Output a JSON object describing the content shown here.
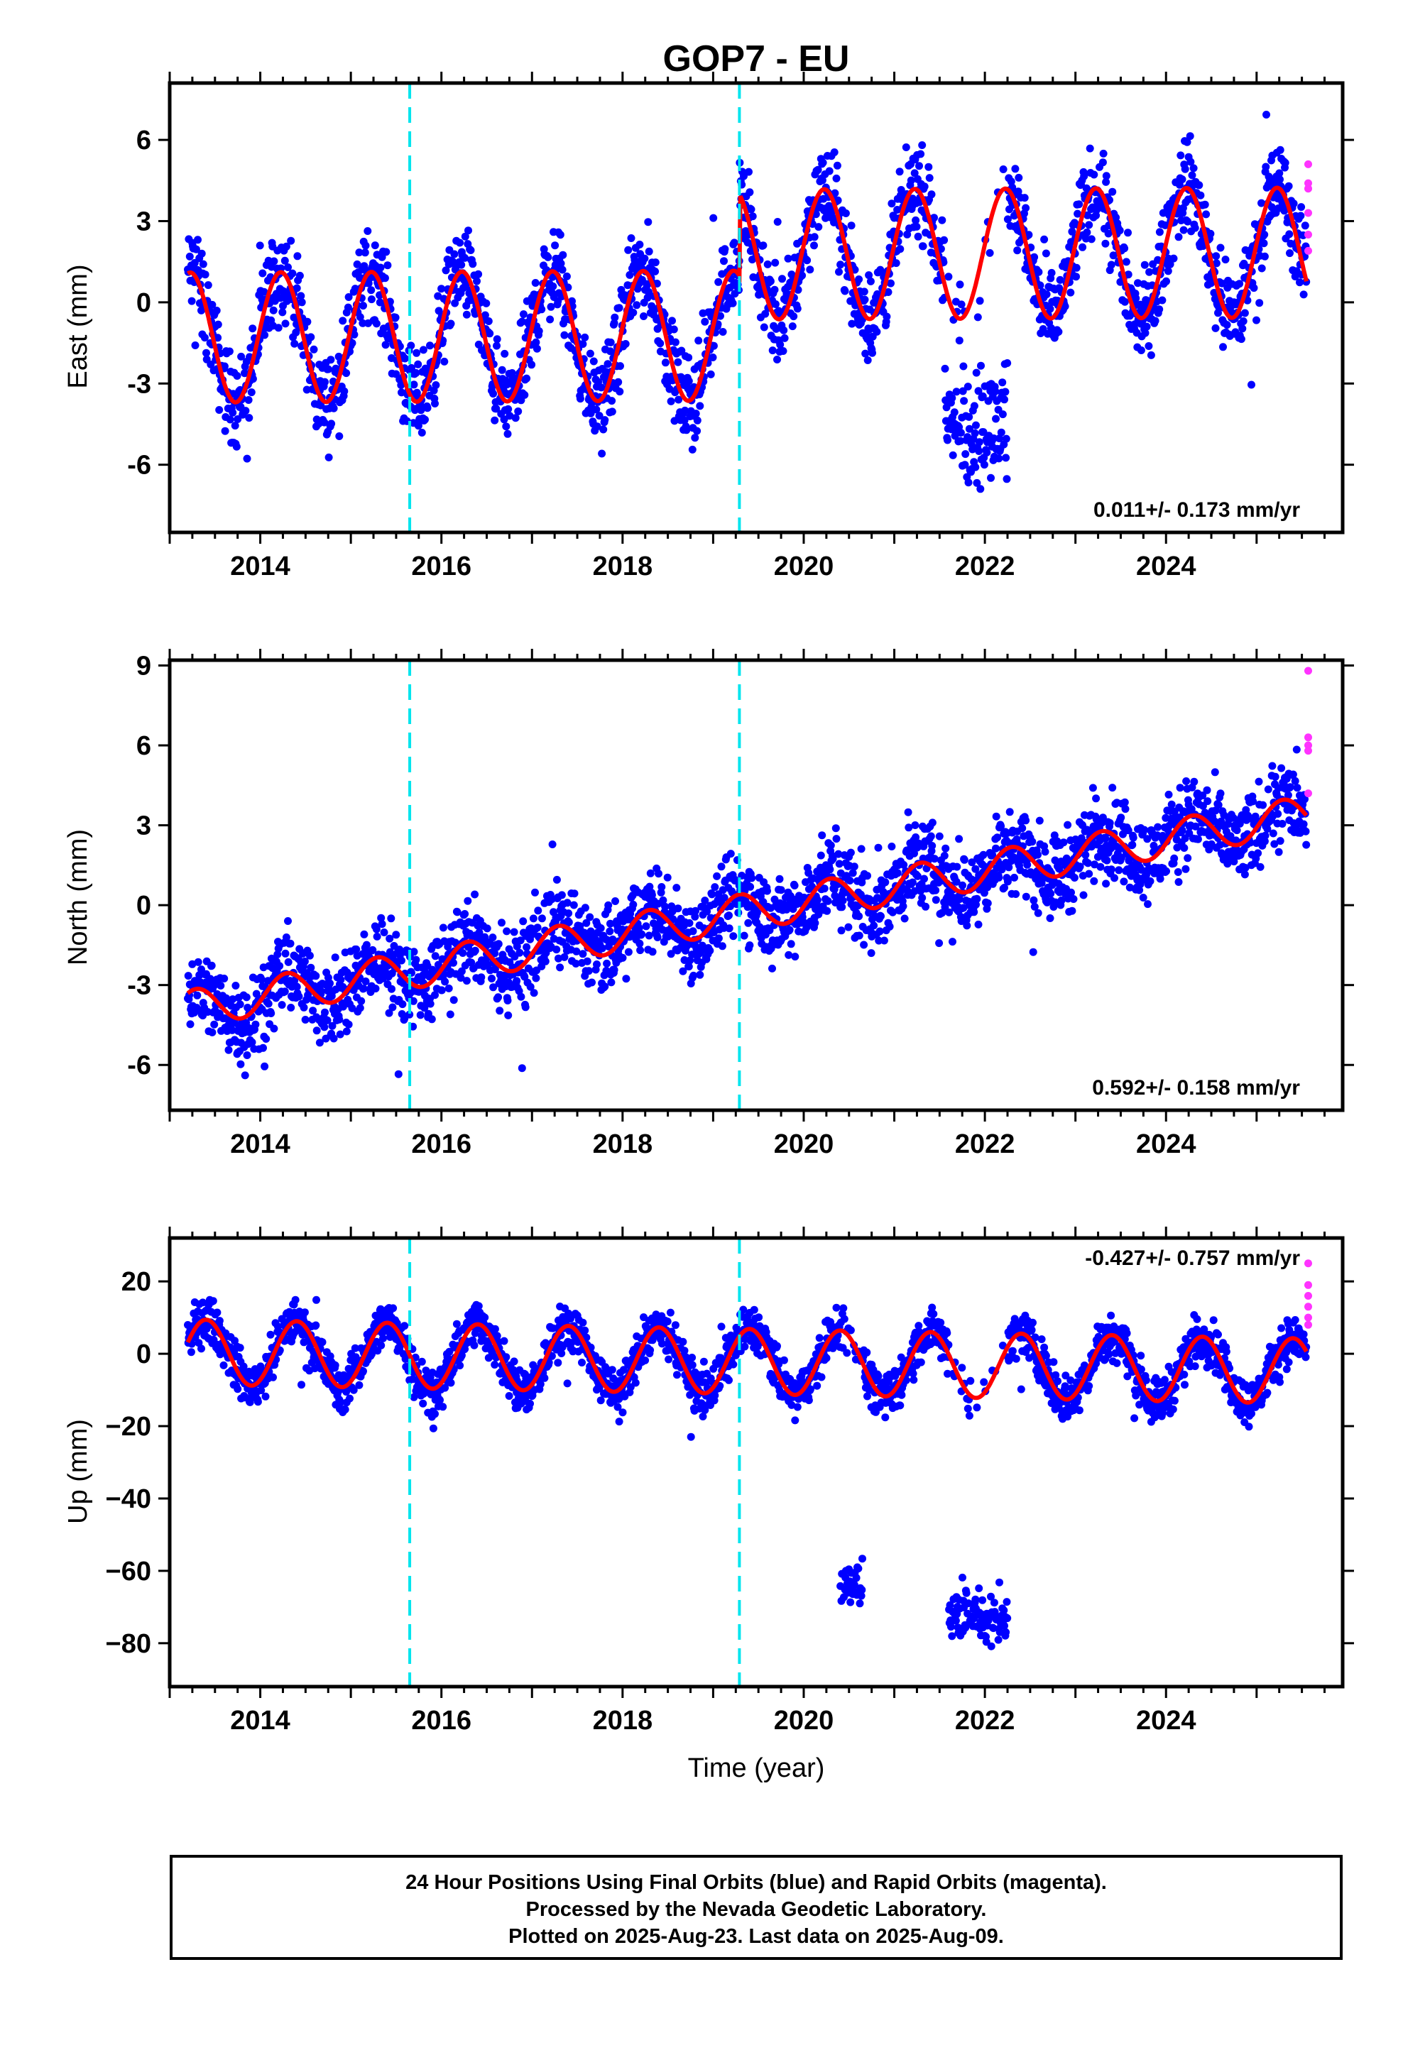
{
  "chart_data": {
    "type": "scatter",
    "title": "GOP7 - EU",
    "xlabel": "Time (year)",
    "xlim": [
      2013.0,
      2025.95
    ],
    "x_ticks": [
      2014,
      2016,
      2018,
      2020,
      2022,
      2024
    ],
    "x_tick_labels": [
      "2014",
      "2016",
      "2018",
      "2020",
      "2022",
      "2024"
    ],
    "dashed_lines_x": [
      2015.65,
      2019.29
    ],
    "colors": {
      "final": "#0000ff",
      "rapid": "#ff33ff",
      "model": "#ff0000",
      "event": "#00e5ee"
    },
    "series": [
      {
        "ylabel": "East (mm)",
        "ylim": [
          -8.5,
          8.1
        ],
        "y_ticks": [
          -6,
          -3,
          0,
          3,
          6
        ],
        "y_tick_labels": [
          "-6",
          "-3",
          "0",
          "3",
          "6"
        ],
        "rate_text": "0.011+/- 0.173 mm/yr",
        "rate_position": "bottom-right",
        "trend": 0.011,
        "amplitude": 2.4,
        "phase": 1.4,
        "offsets": [
          {
            "year": 2019.29,
            "value": 3.0
          }
        ],
        "start_value": -1.3,
        "noise": 1.15,
        "outlier_cluster": {
          "from": 2021.55,
          "to": 2022.25,
          "center": -4.6,
          "spread": 1.5
        },
        "rapid_values": [
          5.1,
          4.4,
          4.2,
          3.3,
          2.5,
          1.9
        ],
        "rapid_x": 2025.57
      },
      {
        "ylabel": "North (mm)",
        "ylim": [
          -7.7,
          9.2
        ],
        "y_ticks": [
          -6,
          -3,
          0,
          3,
          6,
          9
        ],
        "y_tick_labels": [
          "-6",
          "-3",
          "0",
          "3",
          "6",
          "9"
        ],
        "rate_text": "0.592+/- 0.158 mm/yr",
        "rate_position": "bottom-right",
        "trend": 0.592,
        "amplitude": 0.7,
        "phase": 1.0,
        "offsets": [],
        "start_value": -3.9,
        "noise": 1.1,
        "outlier_cluster": null,
        "rapid_values": [
          8.8,
          6.3,
          6.0,
          5.8,
          4.2
        ],
        "rapid_x": 2025.57
      },
      {
        "ylabel": "Up (mm)",
        "ylim": [
          -92,
          32
        ],
        "y_ticks": [
          -80,
          -60,
          -40,
          -20,
          0,
          20
        ],
        "y_tick_labels": [
          "−80",
          "−60",
          "−40",
          "−20",
          "0",
          "20"
        ],
        "rate_text": "-0.427+/- 0.757 mm/yr",
        "rate_position": "top-right",
        "trend": -0.427,
        "amplitude": 9.0,
        "phase": 0.3,
        "offsets": [],
        "start_value": 0.5,
        "noise": 4.5,
        "outlier_cluster": {
          "from": 2021.6,
          "to": 2022.25,
          "center": -73,
          "spread": 6
        },
        "outlier_cluster2": {
          "from": 2020.4,
          "to": 2020.65,
          "center": -64,
          "spread": 5
        },
        "rapid_values": [
          25,
          19,
          16,
          13,
          10,
          8
        ],
        "rapid_x": 2025.57
      }
    ]
  },
  "caption": {
    "line1": "24 Hour Positions Using Final Orbits (blue) and Rapid Orbits (magenta).",
    "line2": "Processed by the Nevada Geodetic Laboratory.",
    "line3": "Plotted on 2025-Aug-23. Last data on 2025-Aug-09."
  }
}
